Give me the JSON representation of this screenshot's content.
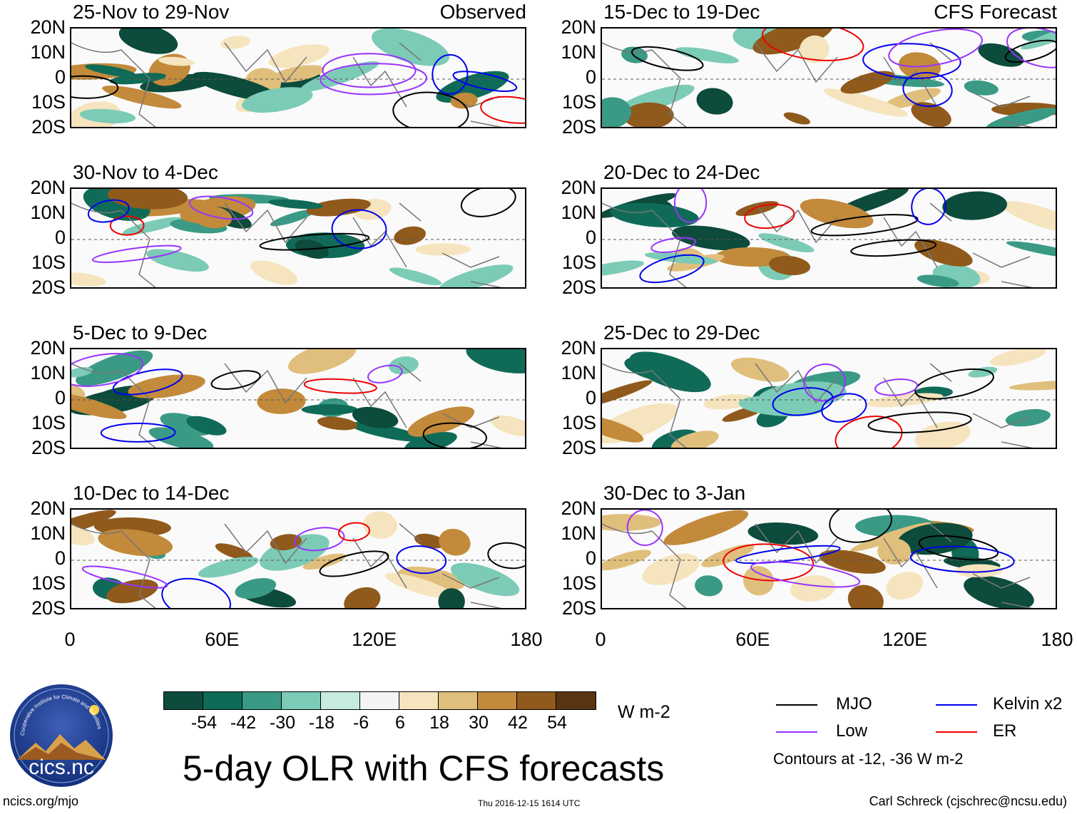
{
  "panels": [
    {
      "id": "p1",
      "title": "25-Nov to 29-Nov",
      "label": "Observed"
    },
    {
      "id": "p2",
      "title": "30-Nov to 4-Dec",
      "label": ""
    },
    {
      "id": "p3",
      "title": "5-Dec to 9-Dec",
      "label": ""
    },
    {
      "id": "p4",
      "title": "10-Dec to 14-Dec",
      "label": ""
    },
    {
      "id": "p5",
      "title": "15-Dec to 19-Dec",
      "label": "CFS Forecast"
    },
    {
      "id": "p6",
      "title": "20-Dec to 24-Dec",
      "label": ""
    },
    {
      "id": "p7",
      "title": "25-Dec to 29-Dec",
      "label": ""
    },
    {
      "id": "p8",
      "title": "30-Dec to 3-Jan",
      "label": ""
    }
  ],
  "lat_ticks": [
    "20N",
    "10N",
    "0",
    "10S",
    "20S"
  ],
  "lon_ticks": [
    "0",
    "60E",
    "120E",
    "180"
  ],
  "colorbar": {
    "colors": [
      "#0d4b3c",
      "#0f6b58",
      "#3a9a85",
      "#7ccbb6",
      "#c6ebe0",
      "#f4f4f4",
      "#f5e4bd",
      "#e0bf7c",
      "#c28a3a",
      "#8f5a1c",
      "#5a3512"
    ],
    "labels": [
      "-54",
      "-42",
      "-30",
      "-18",
      "-6",
      "6",
      "18",
      "30",
      "42",
      "54"
    ],
    "unit": "W m-2"
  },
  "legend": {
    "items": [
      {
        "name": "MJO",
        "color": "#000000"
      },
      {
        "name": "Kelvin x2",
        "color": "#0000ee"
      },
      {
        "name": "Low",
        "color": "#9933ff"
      },
      {
        "name": "ER",
        "color": "#ee0000"
      }
    ],
    "note": "Contours at -12, -36 W m-2"
  },
  "main_title": "5-day OLR with CFS forecasts",
  "logo_text": "cics.nc",
  "logo_ring": "Cooperative Institute for Climate and Satellites",
  "footer": {
    "left": "ncics.org/mjo",
    "center": "Thu 2016-12-15 1614 UTC",
    "right": "Carl Schreck (cjschrec@ncsu.edu)"
  }
}
